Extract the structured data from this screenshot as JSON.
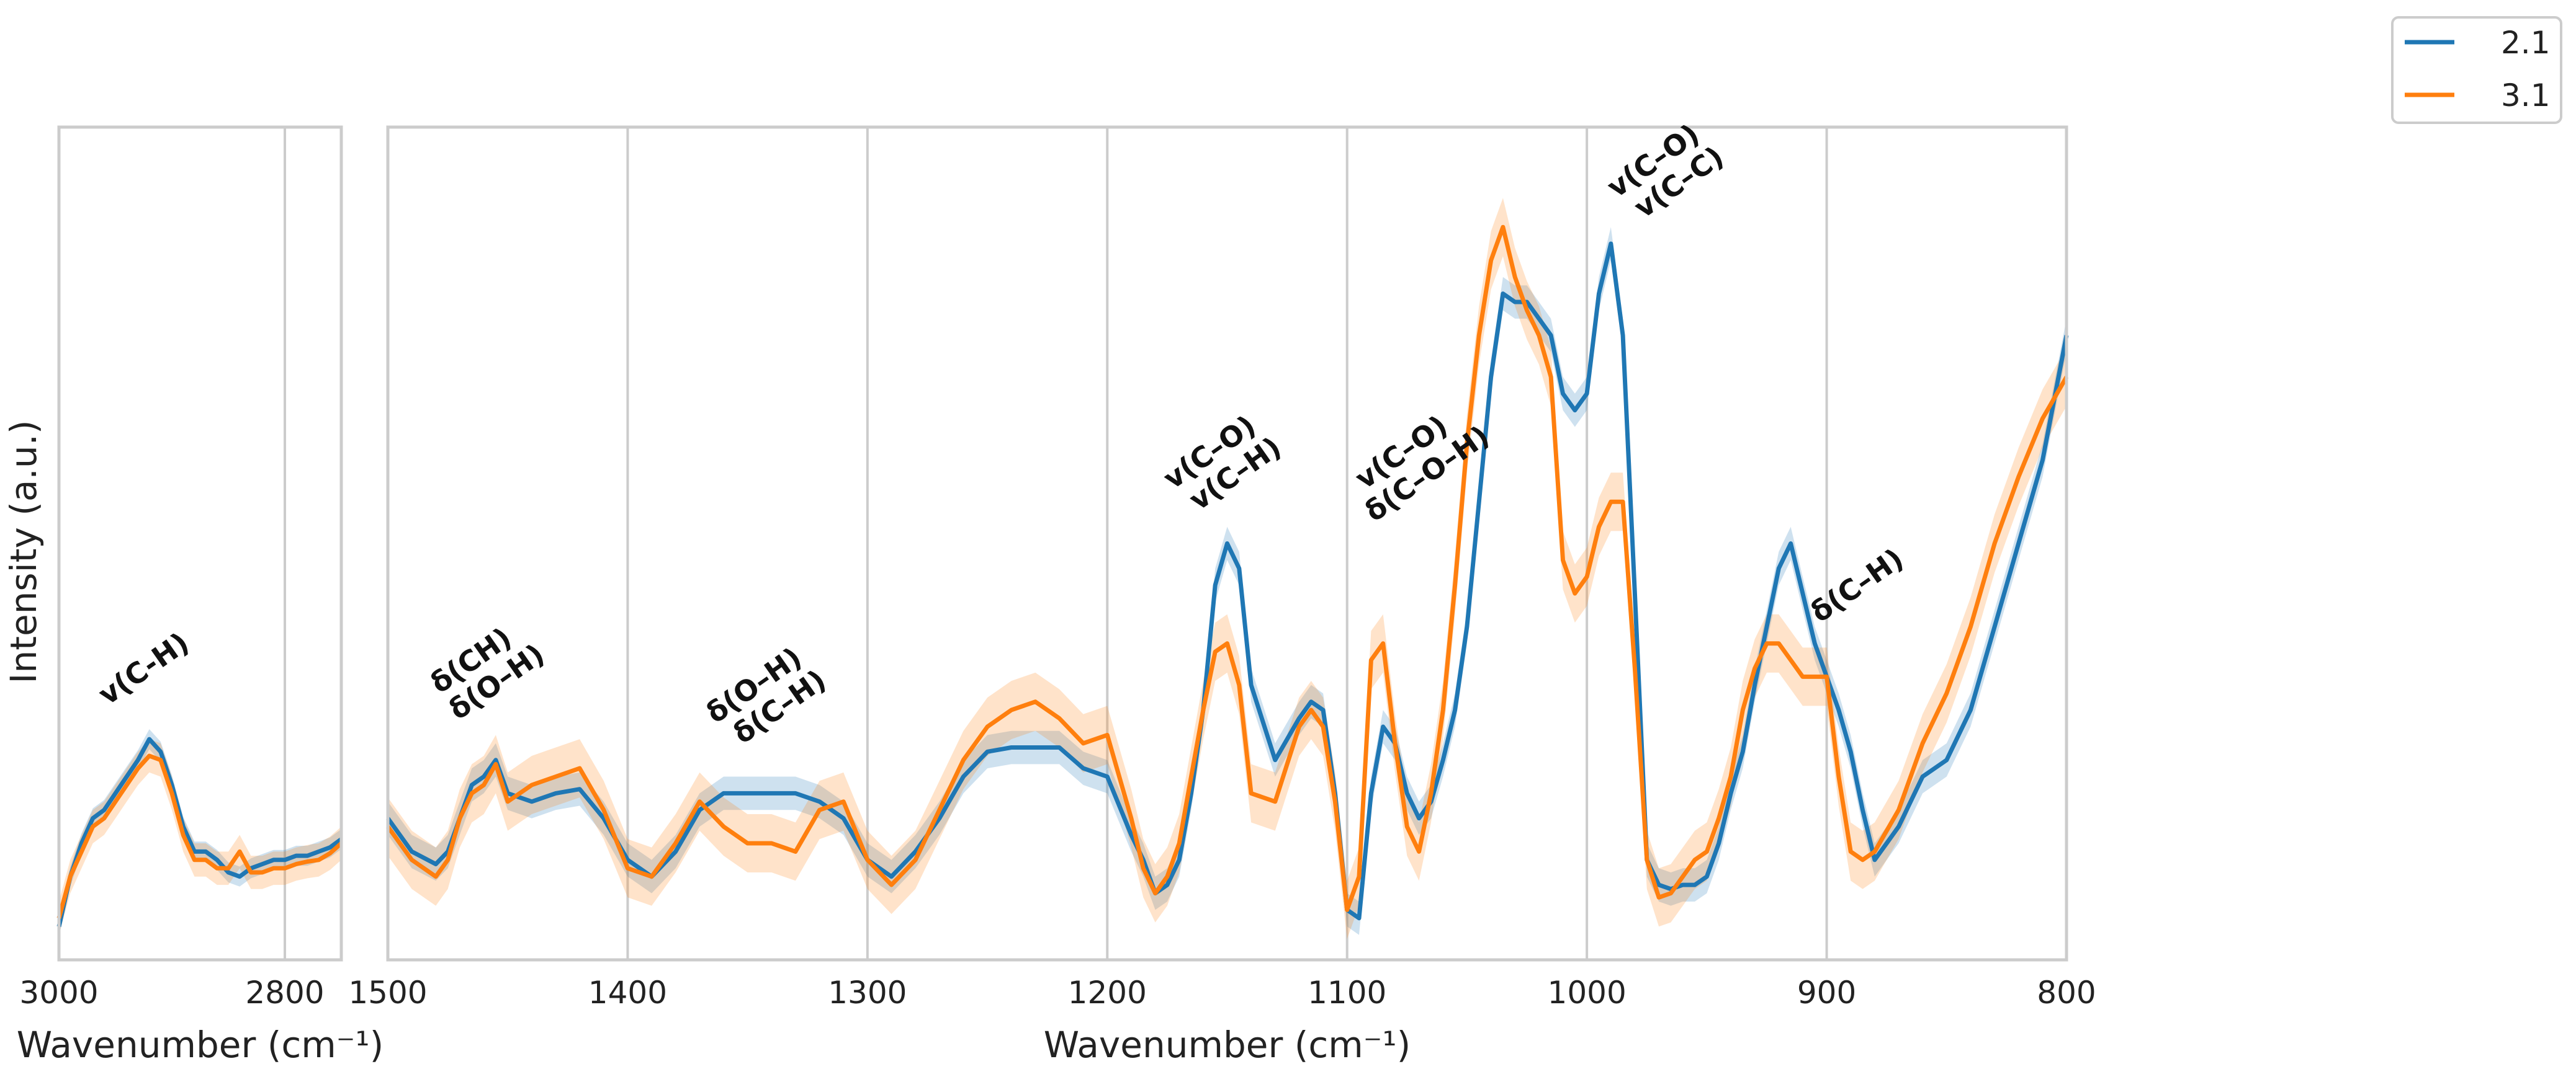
{
  "chart_data": {
    "type": "line",
    "ylabel": "Intensity (a.u.)",
    "xlabel": "Wavenumber (cm⁻¹)",
    "legend": {
      "placement": "top-right-outside",
      "entries": [
        {
          "name": "2.1",
          "color": "#1f77b4"
        },
        {
          "name": "3.1",
          "color": "#ff7f0e"
        }
      ]
    },
    "grid": true,
    "ylim": [
      0,
      1
    ],
    "y_ticks_shown": false,
    "panels": [
      {
        "id": "left",
        "xlim": [
          3000,
          2750
        ],
        "x_inverted": true,
        "xticks": [
          3000,
          2800
        ],
        "xtick_labels": [
          "3000",
          "2800"
        ],
        "gridlines": [
          2800
        ],
        "xlabel": "Wavenumber (cm⁻¹)",
        "annotations": [
          {
            "text": "v(C-H)",
            "x": 2920,
            "y": 0.34,
            "lines": [
              "v(C-H)"
            ]
          }
        ],
        "series": [
          {
            "name": "2.1",
            "x": [
              3000,
              2990,
              2980,
              2970,
              2960,
              2950,
              2940,
              2930,
              2920,
              2910,
              2900,
              2890,
              2880,
              2870,
              2860,
              2850,
              2840,
              2830,
              2820,
              2810,
              2800,
              2790,
              2780,
              2770,
              2760,
              2750
            ],
            "y": [
              0.04,
              0.1,
              0.14,
              0.17,
              0.18,
              0.2,
              0.22,
              0.24,
              0.265,
              0.25,
              0.21,
              0.16,
              0.13,
              0.13,
              0.12,
              0.105,
              0.1,
              0.11,
              0.115,
              0.12,
              0.12,
              0.125,
              0.125,
              0.13,
              0.135,
              0.145
            ],
            "band": 0.012
          },
          {
            "name": "3.1",
            "x": [
              3000,
              2990,
              2980,
              2970,
              2960,
              2950,
              2940,
              2930,
              2920,
              2910,
              2900,
              2890,
              2880,
              2870,
              2860,
              2850,
              2840,
              2830,
              2820,
              2810,
              2800,
              2790,
              2780,
              2770,
              2760,
              2750
            ],
            "y": [
              0.05,
              0.1,
              0.13,
              0.16,
              0.17,
              0.19,
              0.21,
              0.23,
              0.245,
              0.24,
              0.2,
              0.15,
              0.12,
              0.12,
              0.11,
              0.11,
              0.13,
              0.105,
              0.105,
              0.11,
              0.11,
              0.115,
              0.118,
              0.12,
              0.128,
              0.14
            ],
            "band": 0.02
          }
        ]
      },
      {
        "id": "right",
        "xlim": [
          1500,
          800
        ],
        "x_inverted": true,
        "xticks": [
          1500,
          1400,
          1300,
          1200,
          1100,
          1000,
          900,
          800
        ],
        "xtick_labels": [
          "1500",
          "1400",
          "1300",
          "1200",
          "1100",
          "1000",
          "900",
          "800"
        ],
        "gridlines": [
          1400,
          1300,
          1200,
          1100,
          1000,
          900
        ],
        "xlabel": "Wavenumber (cm⁻¹)",
        "annotations": [
          {
            "text": "δ(CH) δ(O–H)",
            "x": 1463,
            "y": 0.35,
            "lines": [
              "δ(CH)",
              "δ(O–H)"
            ]
          },
          {
            "text": "δ(O–H) δ(C–H)",
            "x": 1345,
            "y": 0.32,
            "lines": [
              "δ(O–H)",
              "δ(C–H)"
            ]
          },
          {
            "text": "v(C–O) v(C–H)",
            "x": 1155,
            "y": 0.6,
            "lines": [
              "v(C–O)",
              "v(C–H)"
            ]
          },
          {
            "text": "v(C–O) δ(C–O–H)",
            "x": 1075,
            "y": 0.6,
            "lines": [
              "v(C–O)",
              "δ(C–O–H)"
            ]
          },
          {
            "text": "v(C–O) v(C–C)",
            "x": 970,
            "y": 0.95,
            "lines": [
              "v(C–O)",
              "v(C–C)"
            ]
          },
          {
            "text": "δ(C–H)",
            "x": 885,
            "y": 0.44,
            "lines": [
              "δ(C–H)"
            ]
          }
        ],
        "series": [
          {
            "name": "2.1",
            "x": [
              1500,
              1490,
              1480,
              1475,
              1470,
              1465,
              1460,
              1455,
              1450,
              1440,
              1430,
              1420,
              1410,
              1400,
              1390,
              1380,
              1370,
              1360,
              1350,
              1340,
              1330,
              1320,
              1310,
              1300,
              1290,
              1280,
              1270,
              1260,
              1250,
              1240,
              1230,
              1220,
              1210,
              1200,
              1190,
              1185,
              1180,
              1175,
              1170,
              1165,
              1160,
              1155,
              1150,
              1145,
              1140,
              1130,
              1120,
              1115,
              1110,
              1105,
              1100,
              1095,
              1090,
              1085,
              1080,
              1075,
              1070,
              1065,
              1060,
              1055,
              1050,
              1045,
              1040,
              1035,
              1030,
              1025,
              1020,
              1015,
              1010,
              1005,
              1000,
              995,
              990,
              985,
              980,
              975,
              970,
              965,
              960,
              955,
              950,
              945,
              940,
              935,
              930,
              925,
              920,
              915,
              910,
              905,
              900,
              895,
              890,
              885,
              880,
              870,
              860,
              850,
              840,
              830,
              820,
              810,
              800
            ],
            "y": [
              0.17,
              0.13,
              0.115,
              0.13,
              0.17,
              0.21,
              0.22,
              0.24,
              0.2,
              0.19,
              0.2,
              0.205,
              0.17,
              0.12,
              0.1,
              0.13,
              0.18,
              0.2,
              0.2,
              0.2,
              0.2,
              0.19,
              0.17,
              0.12,
              0.1,
              0.13,
              0.17,
              0.22,
              0.25,
              0.255,
              0.255,
              0.255,
              0.23,
              0.22,
              0.15,
              0.12,
              0.08,
              0.09,
              0.12,
              0.2,
              0.3,
              0.45,
              0.5,
              0.47,
              0.33,
              0.24,
              0.29,
              0.31,
              0.3,
              0.2,
              0.06,
              0.05,
              0.2,
              0.28,
              0.26,
              0.2,
              0.17,
              0.19,
              0.24,
              0.3,
              0.4,
              0.55,
              0.7,
              0.8,
              0.79,
              0.79,
              0.77,
              0.75,
              0.68,
              0.66,
              0.68,
              0.8,
              0.86,
              0.75,
              0.44,
              0.12,
              0.09,
              0.085,
              0.09,
              0.09,
              0.1,
              0.14,
              0.2,
              0.25,
              0.33,
              0.4,
              0.47,
              0.5,
              0.44,
              0.38,
              0.34,
              0.3,
              0.25,
              0.18,
              0.12,
              0.16,
              0.22,
              0.24,
              0.3,
              0.4,
              0.5,
              0.6,
              0.75
            ],
            "band": 0.02
          },
          {
            "name": "3.1",
            "x": [
              1500,
              1490,
              1480,
              1475,
              1470,
              1465,
              1460,
              1455,
              1450,
              1440,
              1430,
              1420,
              1410,
              1400,
              1390,
              1380,
              1370,
              1360,
              1350,
              1340,
              1330,
              1320,
              1310,
              1300,
              1290,
              1280,
              1270,
              1260,
              1250,
              1240,
              1230,
              1220,
              1210,
              1200,
              1190,
              1185,
              1180,
              1175,
              1170,
              1165,
              1160,
              1155,
              1150,
              1145,
              1140,
              1130,
              1120,
              1115,
              1110,
              1105,
              1100,
              1095,
              1090,
              1085,
              1080,
              1075,
              1070,
              1065,
              1060,
              1055,
              1050,
              1045,
              1040,
              1035,
              1030,
              1025,
              1020,
              1015,
              1010,
              1005,
              1000,
              995,
              990,
              985,
              980,
              975,
              970,
              965,
              960,
              955,
              950,
              945,
              940,
              935,
              930,
              925,
              920,
              915,
              910,
              905,
              900,
              895,
              890,
              885,
              880,
              870,
              860,
              850,
              840,
              830,
              820,
              810,
              800
            ],
            "y": [
              0.16,
              0.12,
              0.1,
              0.12,
              0.17,
              0.2,
              0.21,
              0.235,
              0.19,
              0.21,
              0.22,
              0.23,
              0.18,
              0.11,
              0.1,
              0.14,
              0.19,
              0.16,
              0.14,
              0.14,
              0.13,
              0.18,
              0.19,
              0.12,
              0.09,
              0.12,
              0.18,
              0.24,
              0.28,
              0.3,
              0.31,
              0.29,
              0.26,
              0.27,
              0.17,
              0.11,
              0.08,
              0.1,
              0.14,
              0.22,
              0.3,
              0.37,
              0.38,
              0.33,
              0.2,
              0.19,
              0.28,
              0.3,
              0.28,
              0.19,
              0.06,
              0.1,
              0.36,
              0.38,
              0.26,
              0.16,
              0.13,
              0.2,
              0.3,
              0.45,
              0.62,
              0.75,
              0.84,
              0.88,
              0.82,
              0.78,
              0.75,
              0.7,
              0.48,
              0.44,
              0.46,
              0.52,
              0.55,
              0.55,
              0.35,
              0.12,
              0.075,
              0.08,
              0.1,
              0.12,
              0.13,
              0.17,
              0.22,
              0.3,
              0.35,
              0.38,
              0.38,
              0.36,
              0.34,
              0.34,
              0.34,
              0.22,
              0.13,
              0.12,
              0.13,
              0.18,
              0.26,
              0.32,
              0.4,
              0.5,
              0.58,
              0.65,
              0.7
            ],
            "band": 0.035
          }
        ]
      }
    ]
  }
}
